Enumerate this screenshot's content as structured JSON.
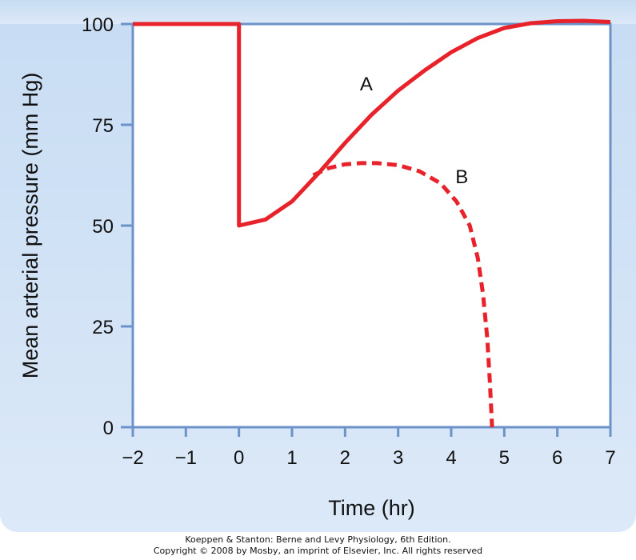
{
  "colors": {
    "panel_top": "#c7dcf3",
    "panel_bottom": "#dce9f8",
    "axis": "#6b93c9",
    "series": "#e8222a"
  },
  "chart_data": {
    "type": "line",
    "xlabel": "Time (hr)",
    "ylabel": "Mean arterial pressure (mm Hg)",
    "xlim": [
      -2,
      7
    ],
    "ylim": [
      0,
      100
    ],
    "xticks": [
      -2,
      -1,
      0,
      1,
      2,
      3,
      4,
      5,
      6,
      7
    ],
    "xtick_labels": [
      "−2",
      "−1",
      "0",
      "1",
      "2",
      "3",
      "4",
      "5",
      "6",
      "7"
    ],
    "yticks": [
      0,
      25,
      50,
      75,
      100
    ],
    "ytick_labels": [
      "0",
      "25",
      "50",
      "75",
      "100"
    ],
    "grid": false,
    "series": [
      {
        "name": "A",
        "style": "solid",
        "x": [
          -2,
          0,
          0,
          0.5,
          1,
          1.5,
          2,
          2.5,
          3,
          3.5,
          4,
          4.5,
          5,
          5.5,
          6,
          6.5,
          7
        ],
        "y": [
          100,
          100,
          50,
          51.5,
          56,
          63,
          70.5,
          77.5,
          83.5,
          88.5,
          93,
          96.5,
          99,
          100.2,
          100.7,
          100.8,
          100.5
        ]
      },
      {
        "name": "B",
        "style": "dashed",
        "x": [
          1.4,
          1.7,
          2.0,
          2.3,
          2.6,
          3.0,
          3.4,
          3.8,
          4.1,
          4.35,
          4.5,
          4.6,
          4.68,
          4.73,
          4.77
        ],
        "y": [
          62.5,
          64.3,
          65.2,
          65.5,
          65.5,
          65,
          63.5,
          60.5,
          56,
          50,
          42,
          33,
          22,
          11,
          0
        ]
      }
    ],
    "annotations": [
      {
        "text": "A",
        "x": 2.4,
        "y": 83.5
      },
      {
        "text": "B",
        "x": 4.2,
        "y": 60.5
      }
    ]
  },
  "credit": {
    "line1": "Koeppen & Stanton: Berne and Levy Physiology, 6th Edition.",
    "line2": "Copyright © 2008 by Mosby, an imprint of Elsevier, Inc. All rights reserved"
  }
}
